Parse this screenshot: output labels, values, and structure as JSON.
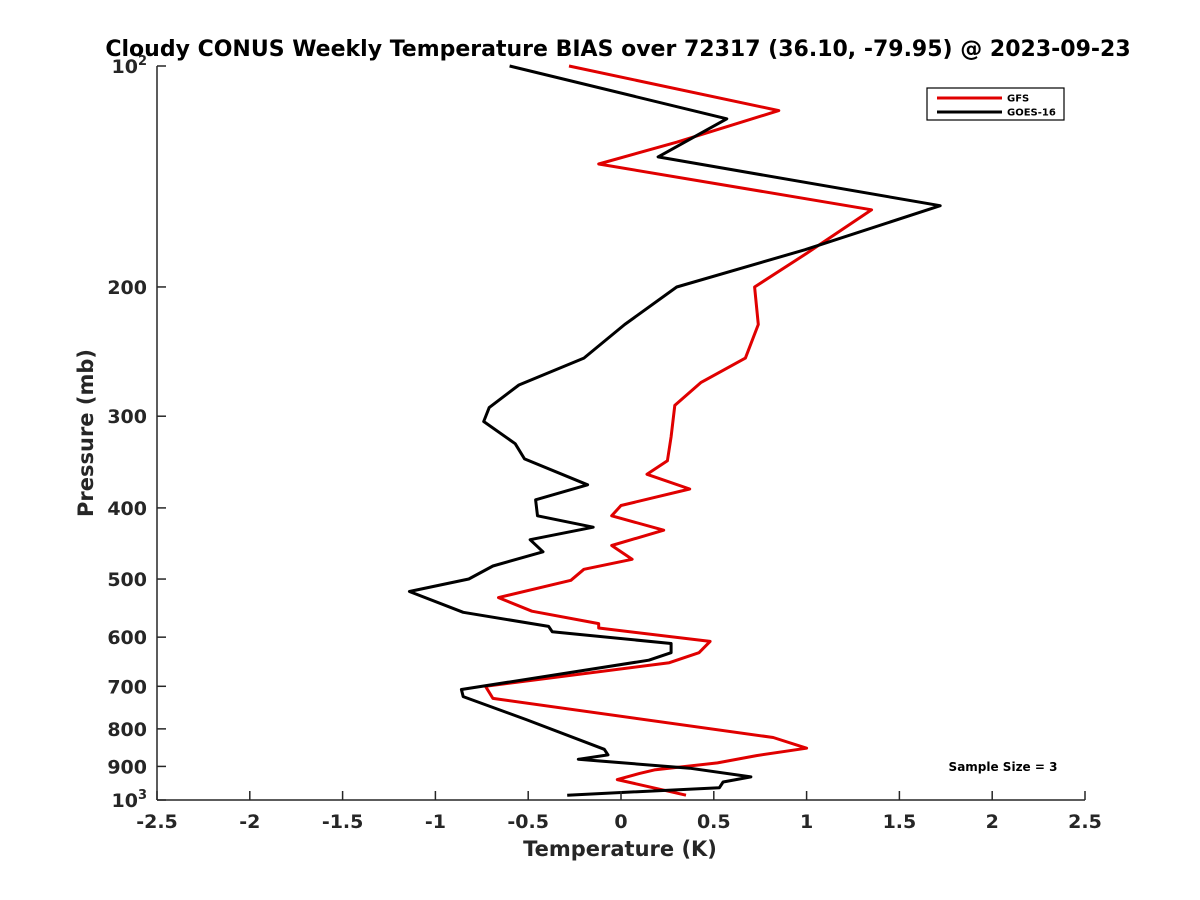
{
  "chart_data": {
    "type": "line",
    "title": "Cloudy CONUS Weekly Temperature BIAS over 72317 (36.10, -79.95) @ 2023-09-23",
    "xlabel": "Temperature (K)",
    "ylabel": "Pressure (mb)",
    "xlim": [
      -2.5,
      2.5
    ],
    "ylim": [
      100,
      1000
    ],
    "yscale": "log",
    "y_reversed": true,
    "grid": false,
    "legend_position": "top-right",
    "annotation": "Sample Size = 3",
    "x_ticks": [
      {
        "value": -2.5,
        "label": "-2.5"
      },
      {
        "value": -2,
        "label": "-2"
      },
      {
        "value": -1.5,
        "label": "-1.5"
      },
      {
        "value": -1,
        "label": "-1"
      },
      {
        "value": -0.5,
        "label": "-0.5"
      },
      {
        "value": 0,
        "label": "0"
      },
      {
        "value": 0.5,
        "label": "0.5"
      },
      {
        "value": 1,
        "label": "1"
      },
      {
        "value": 1.5,
        "label": "1.5"
      },
      {
        "value": 2,
        "label": "2"
      },
      {
        "value": 2.5,
        "label": "2.5"
      }
    ],
    "y_ticks": [
      {
        "value": 100,
        "label": "10",
        "exp": "2"
      },
      {
        "value": 200,
        "label": "200"
      },
      {
        "value": 300,
        "label": "300"
      },
      {
        "value": 400,
        "label": "400"
      },
      {
        "value": 500,
        "label": "500"
      },
      {
        "value": 600,
        "label": "600"
      },
      {
        "value": 700,
        "label": "700"
      },
      {
        "value": 800,
        "label": "800"
      },
      {
        "value": 900,
        "label": "900"
      },
      {
        "value": 1000,
        "label": "10",
        "exp": "3"
      }
    ],
    "series": [
      {
        "name": "GFS",
        "color": "#e00000",
        "points": [
          [
            -0.28,
            100
          ],
          [
            0.85,
            115
          ],
          [
            0.3,
            127
          ],
          [
            -0.12,
            136
          ],
          [
            1.35,
            157
          ],
          [
            1.0,
            180
          ],
          [
            0.72,
            200
          ],
          [
            0.74,
            225
          ],
          [
            0.67,
            250
          ],
          [
            0.43,
            270
          ],
          [
            0.29,
            290
          ],
          [
            0.27,
            320
          ],
          [
            0.25,
            345
          ],
          [
            0.14,
            360
          ],
          [
            0.37,
            377
          ],
          [
            0.0,
            397
          ],
          [
            -0.05,
            410
          ],
          [
            0.23,
            429
          ],
          [
            -0.05,
            450
          ],
          [
            0.06,
            470
          ],
          [
            -0.2,
            485
          ],
          [
            -0.27,
            502
          ],
          [
            -0.66,
            530
          ],
          [
            -0.48,
            553
          ],
          [
            -0.12,
            575
          ],
          [
            -0.12,
            583
          ],
          [
            0.48,
            608
          ],
          [
            0.42,
            630
          ],
          [
            0.26,
            650
          ],
          [
            -0.73,
            700
          ],
          [
            -0.69,
            727
          ],
          [
            0.82,
            822
          ],
          [
            1.0,
            850
          ],
          [
            0.73,
            870
          ],
          [
            0.52,
            890
          ],
          [
            0.18,
            910
          ],
          [
            0.1,
            920
          ],
          [
            -0.02,
            938
          ],
          [
            0.35,
            985
          ]
        ]
      },
      {
        "name": "GOES-16",
        "color": "#000000",
        "points": [
          [
            -0.6,
            100
          ],
          [
            0.57,
            118
          ],
          [
            0.2,
            133
          ],
          [
            1.72,
            155
          ],
          [
            0.99,
            178
          ],
          [
            0.3,
            200
          ],
          [
            0.02,
            225
          ],
          [
            -0.2,
            250
          ],
          [
            -0.55,
            272
          ],
          [
            -0.71,
            292
          ],
          [
            -0.74,
            305
          ],
          [
            -0.57,
            327
          ],
          [
            -0.52,
            343
          ],
          [
            -0.18,
            372
          ],
          [
            -0.46,
            390
          ],
          [
            -0.45,
            410
          ],
          [
            -0.15,
            425
          ],
          [
            -0.49,
            442
          ],
          [
            -0.42,
            459
          ],
          [
            -0.69,
            480
          ],
          [
            -0.82,
            500
          ],
          [
            -1.14,
            520
          ],
          [
            -0.85,
            555
          ],
          [
            -0.39,
            580
          ],
          [
            -0.37,
            590
          ],
          [
            0.27,
            612
          ],
          [
            0.27,
            630
          ],
          [
            0.15,
            645
          ],
          [
            -0.86,
            707
          ],
          [
            -0.85,
            723
          ],
          [
            -0.51,
            777
          ],
          [
            -0.09,
            853
          ],
          [
            -0.07,
            868
          ],
          [
            -0.23,
            880
          ],
          [
            0.37,
            905
          ],
          [
            0.7,
            930
          ],
          [
            0.55,
            945
          ],
          [
            0.53,
            962
          ],
          [
            -0.29,
            985
          ]
        ]
      }
    ]
  }
}
